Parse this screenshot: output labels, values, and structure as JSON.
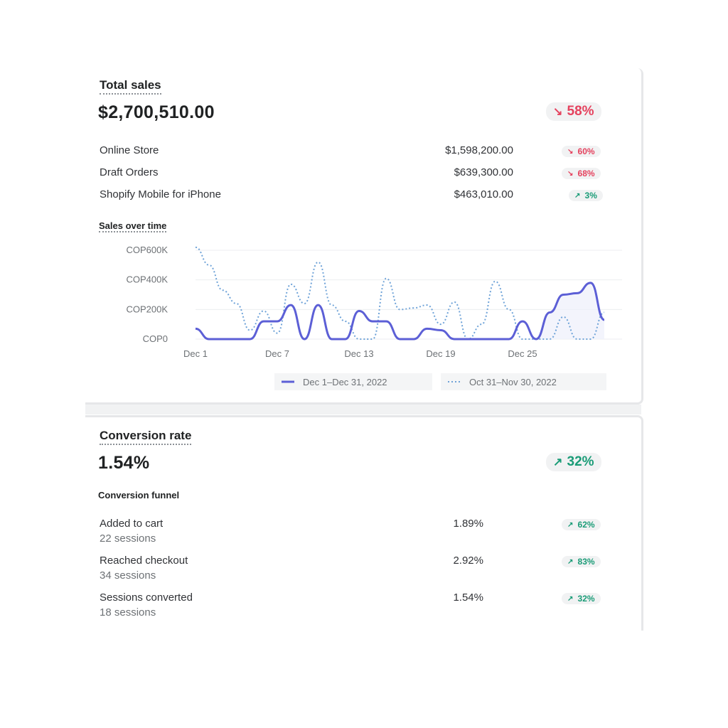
{
  "total_sales": {
    "title": "Total sales",
    "value": "$2,700,510.00",
    "change": "58%",
    "rows": [
      {
        "label": "Online Store",
        "value": "$1,598,200.00",
        "change": "60%"
      },
      {
        "label": "Draft Orders",
        "value": "$639,300.00",
        "change": "68%"
      },
      {
        "label": "Shopify Mobile for iPhone",
        "value": "$463,010.00",
        "change": "3%"
      }
    ],
    "chart_title": "Sales over time"
  },
  "conversion": {
    "title": "Conversion rate",
    "value": "1.54%",
    "change": "32%",
    "funnel_title": "Conversion funnel",
    "rows": [
      {
        "label": "Added to cart",
        "sessions": "22 sessions",
        "value": "1.89%",
        "change": "62%"
      },
      {
        "label": "Reached checkout",
        "sessions": "34 sessions",
        "value": "2.92%",
        "change": "83%"
      },
      {
        "label": "Sessions converted",
        "sessions": "18 sessions",
        "value": "1.54%",
        "change": "32%"
      }
    ]
  },
  "colors": {
    "down": "#e5425e",
    "up": "#1a9c77",
    "series_current": "#5c5fd6",
    "series_previous": "#6fa3d8"
  },
  "icons": {
    "down": "arrow-down-right-icon",
    "up": "arrow-up-right-icon"
  },
  "chart_data": {
    "type": "line",
    "title": "Sales over time",
    "y_ticks": [
      "COP600K",
      "COP400K",
      "COP200K",
      "COP0"
    ],
    "x_ticks": [
      "Dec 1",
      "Dec 7",
      "Dec 13",
      "Dec 19",
      "Dec 25"
    ],
    "ylim": [
      0,
      600000
    ],
    "grid": true,
    "legend_position": "bottom-right",
    "x": [
      1,
      2,
      3,
      4,
      5,
      6,
      7,
      8,
      9,
      10,
      11,
      12,
      13,
      14,
      15,
      16,
      17,
      18,
      19,
      20,
      21,
      22,
      23,
      24,
      25,
      26,
      27,
      28,
      29,
      30,
      31
    ],
    "series": [
      {
        "name": "Dec 1–Dec 31, 2022",
        "style": "solid",
        "values": [
          70000,
          0,
          0,
          0,
          0,
          120000,
          120000,
          230000,
          0,
          230000,
          0,
          0,
          190000,
          120000,
          120000,
          0,
          0,
          70000,
          60000,
          0,
          0,
          0,
          0,
          0,
          120000,
          0,
          180000,
          300000,
          310000,
          380000,
          130000
        ]
      },
      {
        "name": "Oct 31–Nov 30, 2022",
        "style": "dotted",
        "values": [
          620000,
          500000,
          330000,
          240000,
          60000,
          190000,
          40000,
          370000,
          240000,
          520000,
          230000,
          120000,
          0,
          0,
          410000,
          200000,
          210000,
          230000,
          100000,
          250000,
          0,
          100000,
          390000,
          200000,
          0,
          0,
          0,
          150000,
          0,
          0,
          180000
        ]
      }
    ]
  }
}
